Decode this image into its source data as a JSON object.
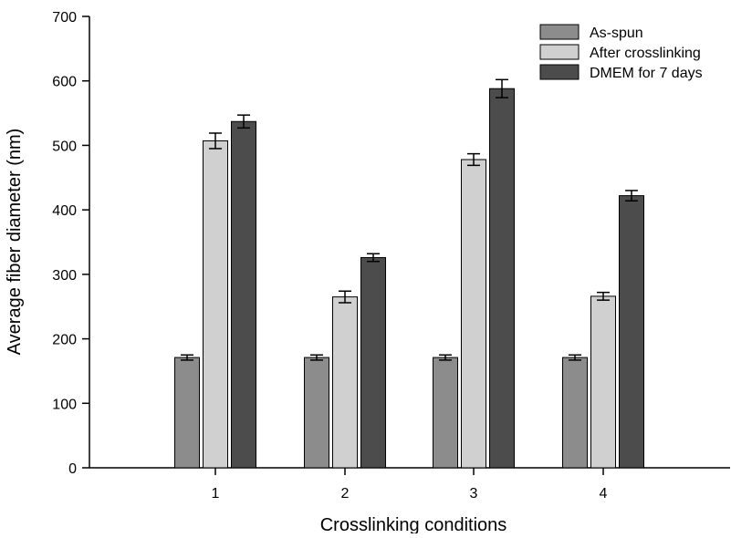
{
  "chart_data": {
    "type": "bar",
    "title": "",
    "xlabel": "Crosslinking conditions",
    "ylabel": "Average fiber diameter (nm)",
    "categories": [
      "1",
      "2",
      "3",
      "4"
    ],
    "ylim": [
      0,
      700
    ],
    "yticks": [
      0,
      100,
      200,
      300,
      400,
      500,
      600,
      700
    ],
    "grid": false,
    "legend_position": "top-right",
    "series": [
      {
        "name": "As-spun",
        "color": "#8c8c8c",
        "values": [
          171,
          171,
          171,
          171
        ],
        "errors": [
          4,
          4,
          4,
          4
        ]
      },
      {
        "name": "After crosslinking",
        "color": "#d0d0d0",
        "values": [
          507,
          265,
          478,
          266
        ],
        "errors": [
          12,
          9,
          9,
          6
        ]
      },
      {
        "name": "DMEM for 7 days",
        "color": "#4c4c4c",
        "values": [
          537,
          326,
          588,
          422
        ],
        "errors": [
          10,
          6,
          14,
          8
        ]
      }
    ]
  }
}
